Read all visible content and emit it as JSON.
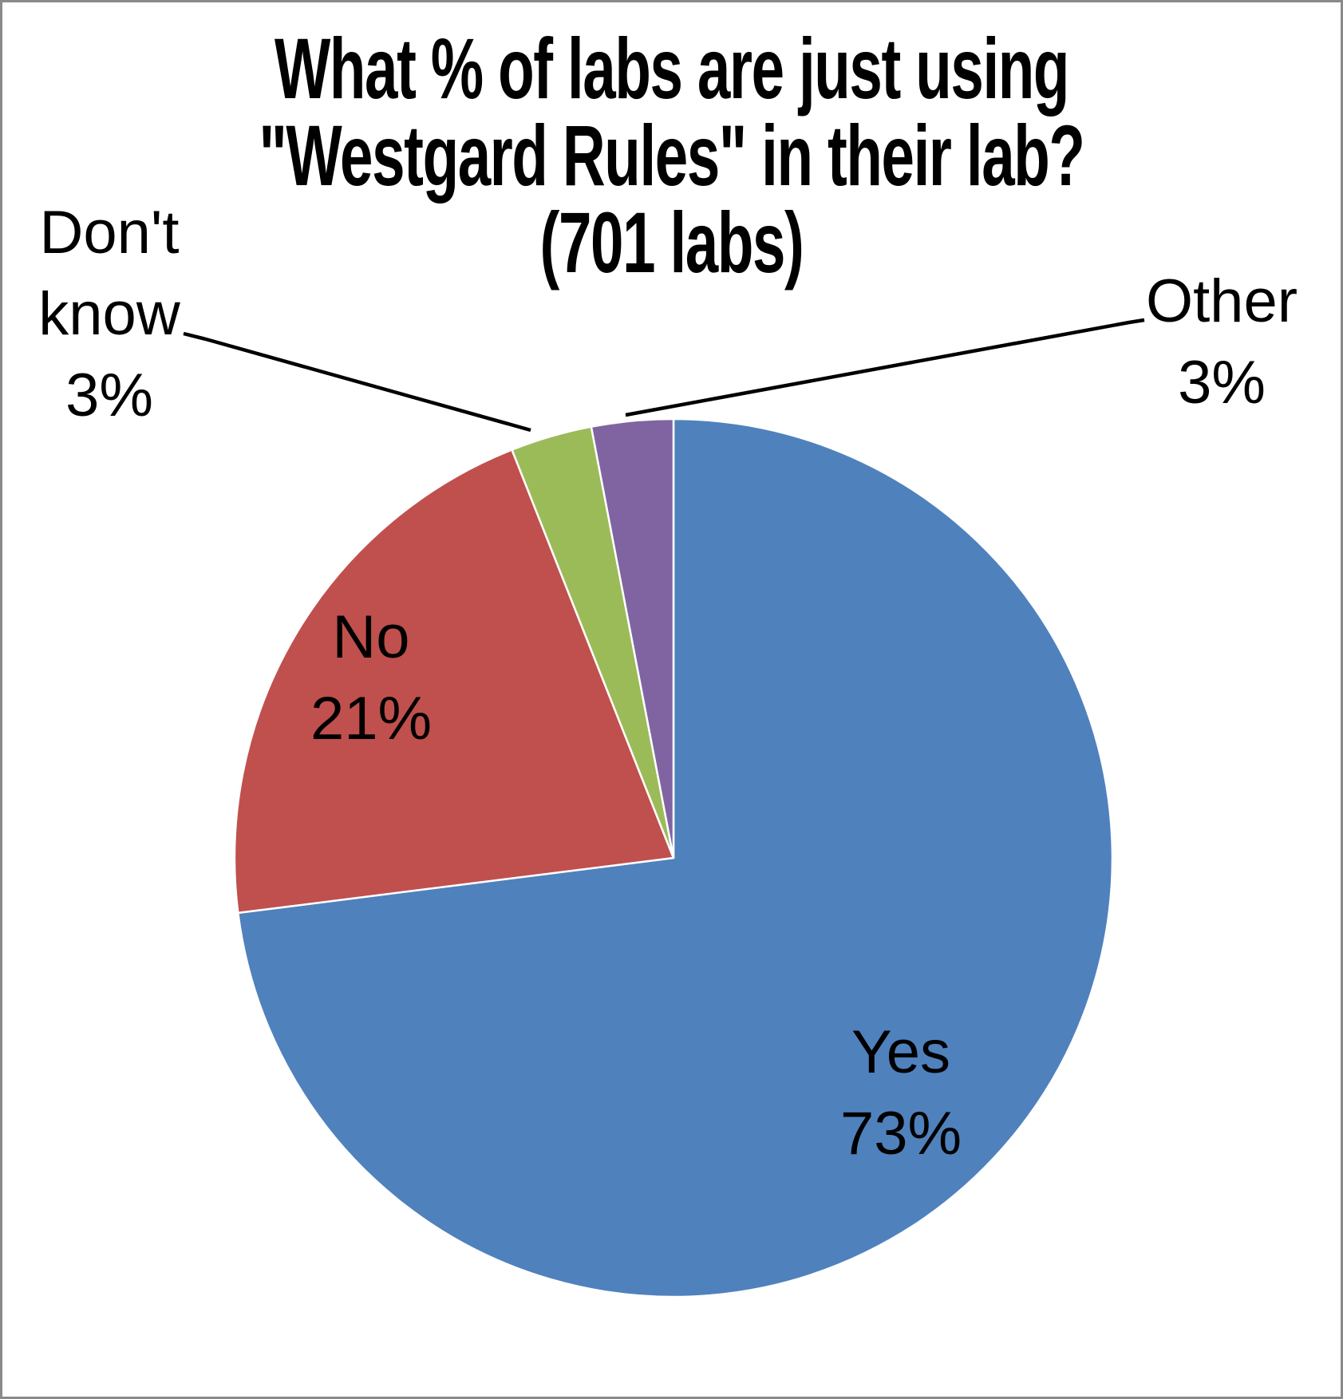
{
  "title": {
    "line1": "What % of labs are just using",
    "line2": "\"Westgard Rules\" in their lab?",
    "line3": "(701 labs)"
  },
  "labels": {
    "yes": {
      "name": "Yes",
      "pct": "73%"
    },
    "no": {
      "name": "No",
      "pct": "21%"
    },
    "dont_know": {
      "name_line1": "Don't",
      "name_line2": "know",
      "pct": "3%"
    },
    "other": {
      "name": "Other",
      "pct": "3%"
    }
  },
  "colors": {
    "yes": "#4F81BD",
    "no": "#C0504D",
    "dont_know": "#9BBB59",
    "other": "#8064A2",
    "slice_border": "#FFFFFF",
    "leader_line": "#000000",
    "frame_border": "#8A8A8A",
    "text": "#000000"
  },
  "chart_data": {
    "type": "pie",
    "title": "What % of labs are just using \"Westgard Rules\" in their lab? (701 labs)",
    "sample_size_labs": 701,
    "start_angle": "12 o'clock",
    "direction": "clockwise",
    "legend_position": "none (direct labels; small slices use leader lines)",
    "categories": [
      "Yes",
      "No",
      "Don't know",
      "Other"
    ],
    "values": [
      73,
      21,
      3,
      3
    ],
    "units": "percent",
    "slices": [
      {
        "label": "Yes",
        "value_pct": 73,
        "color": "#4F81BD",
        "label_placement": "inside"
      },
      {
        "label": "No",
        "value_pct": 21,
        "color": "#C0504D",
        "label_placement": "inside"
      },
      {
        "label": "Don't know",
        "value_pct": 3,
        "color": "#9BBB59",
        "label_placement": "outside-left, leader line"
      },
      {
        "label": "Other",
        "value_pct": 3,
        "color": "#8064A2",
        "label_placement": "outside-right, leader line"
      }
    ]
  }
}
